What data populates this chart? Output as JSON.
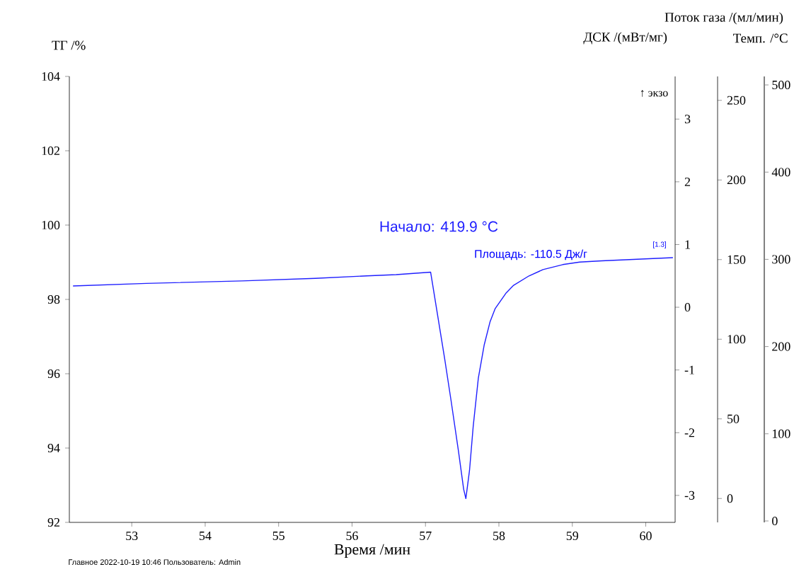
{
  "chart_data": {
    "type": "line",
    "xlabel": "Время /мин",
    "ylabel": "ТГ /%",
    "y2label": "ДСК /(мВт/мг)",
    "y3label": "Поток газа /(мл/мин)",
    "xlim": [
      52.15,
      60.4
    ],
    "xticks": [
      53,
      54,
      55,
      56,
      57,
      58,
      59,
      60
    ],
    "ylim": [
      92,
      104
    ],
    "yticks": [
      92,
      94,
      96,
      98,
      100,
      102,
      104
    ],
    "y2lim": [
      -3.43,
      3.68
    ],
    "y2ticks": [
      -3,
      -2,
      -1,
      0,
      1,
      2,
      3
    ],
    "y3lim": [
      -15,
      265
    ],
    "y3ticks": [
      0,
      50,
      100,
      150,
      200,
      250
    ],
    "series": [
      {
        "axis": "y2",
        "color": "#1f1fff",
        "x": [
          52.2,
          53.2,
          54.5,
          55.5,
          56.2,
          56.6,
          57.07,
          57.26,
          57.35,
          57.45,
          57.52,
          57.55,
          57.6,
          57.65,
          57.72,
          57.8,
          57.88,
          57.95,
          58.1,
          58.2,
          58.41,
          58.6,
          58.87,
          59.1,
          59.4,
          60.37
        ],
        "values": [
          0.34,
          0.38,
          0.42,
          0.46,
          0.5,
          0.52,
          0.56,
          -0.81,
          -1.5,
          -2.3,
          -2.9,
          -3.05,
          -2.6,
          -1.9,
          -1.13,
          -0.6,
          -0.23,
          -0.02,
          0.23,
          0.35,
          0.5,
          0.6,
          0.68,
          0.72,
          0.74,
          0.79
        ]
      }
    ],
    "annotations": [
      "Начало: 419.9 °C",
      "Площадь: -110.5 Дж/г",
      "[1.3]",
      "↑ экзо",
      "Главное   2022-10-19 10:46   Пользователь: Admin",
      "Темп. /°C",
      "0",
      "100",
      "200",
      "300",
      "400",
      "500"
    ]
  }
}
